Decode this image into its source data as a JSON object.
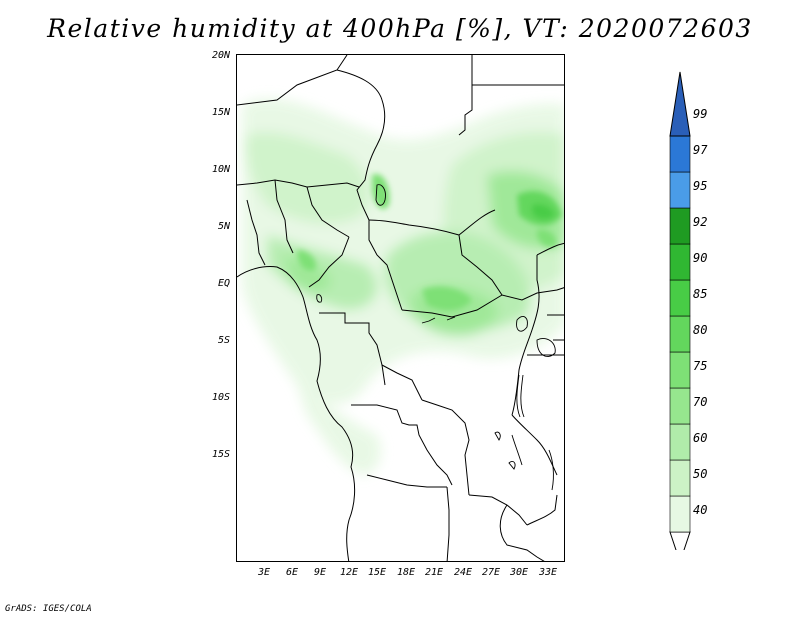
{
  "title": "Relative humidity at 400hPa [%], VT: 2020072603",
  "credit": "GrADS: IGES/COLA",
  "map": {
    "lat_labels": [
      "20N",
      "15N",
      "10N",
      "5N",
      "EQ",
      "5S",
      "10S",
      "15S"
    ],
    "lon_labels": [
      "3E",
      "6E",
      "9E",
      "12E",
      "15E",
      "18E",
      "21E",
      "24E",
      "27E",
      "30E",
      "33E"
    ]
  },
  "colorbar": {
    "levels": [
      "40",
      "50",
      "60",
      "70",
      "75",
      "80",
      "85",
      "90",
      "92",
      "95",
      "97",
      "99"
    ],
    "colors": [
      "#e6f8e3",
      "#ccf2c6",
      "#b0ecaa",
      "#96e68e",
      "#7ee076",
      "#63d75d",
      "#48cc46",
      "#30b732",
      "#1f9b22",
      "#4a9ce8",
      "#2b78d6",
      "#2a5fb8"
    ]
  }
}
